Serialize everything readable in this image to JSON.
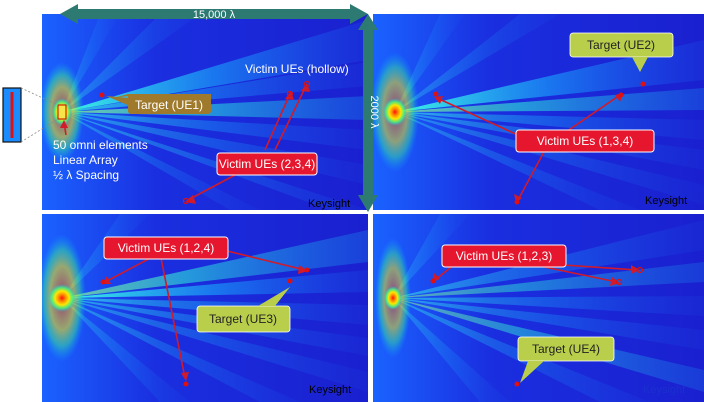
{
  "dimension_labels": {
    "width": "15,000 λ",
    "height": "2000 λ"
  },
  "array_info": {
    "line1": "50 omni elements",
    "line2": "Linear Array",
    "line3": "½ λ Spacing"
  },
  "watermark": "Keysight",
  "panels": [
    {
      "id": "p1",
      "target_label": "Target (UE1)",
      "victim_label": "Victim UEs (2,3,4)",
      "hollow_label": "Victim UEs (hollow)"
    },
    {
      "id": "p2",
      "target_label": "Target (UE2)",
      "victim_label": "Victim UEs (1,3,4)"
    },
    {
      "id": "p3",
      "target_label": "Target (UE3)",
      "victim_label": "Victim UEs (1,2,4)"
    },
    {
      "id": "p4",
      "target_label": "Target (UE4)",
      "victim_label": "Victim UEs (1,2,3)"
    }
  ],
  "colors": {
    "heatmap_dark": "#1a1fd0",
    "heatmap_mid": "#1a8cff",
    "heatmap_light": "#22e0ff",
    "callout_victim": "#e6162e",
    "callout_target_brown": "#a07a2c",
    "callout_target_green": "#b9cf4c",
    "dimension_arrow": "#2d7a73",
    "arrow": "#d11a2a"
  }
}
